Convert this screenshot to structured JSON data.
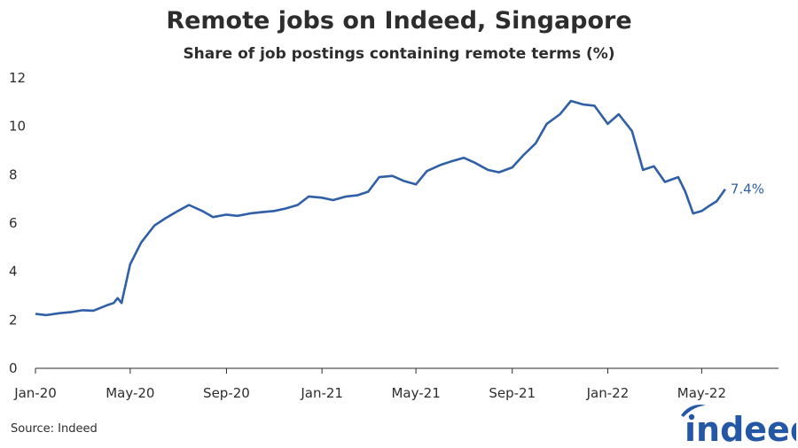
{
  "chart_data": {
    "type": "line",
    "title": "Remote jobs on Indeed, Singapore",
    "subtitle": "Share of job postings containing remote terms (%)",
    "ylim": [
      0,
      12
    ],
    "yticks": [
      "0",
      "2",
      "4",
      "6",
      "8",
      "10",
      "12"
    ],
    "xticks": [
      "Jan-20",
      "May-20",
      "Sep-20",
      "Jan-21",
      "May-21",
      "Sep-21",
      "Jan-22",
      "May-22"
    ],
    "grid": false,
    "line_color": "#2f5fa6",
    "end_label": "7.4%",
    "series": [
      {
        "x": [
          "2020-01-01",
          "2020-01-15",
          "2020-02-01",
          "2020-02-15",
          "2020-03-01",
          "2020-03-15",
          "2020-04-01",
          "2020-04-10",
          "2020-04-15",
          "2020-04-20",
          "2020-05-01",
          "2020-05-15",
          "2020-06-01",
          "2020-06-15",
          "2020-07-01",
          "2020-07-15",
          "2020-08-01",
          "2020-08-15",
          "2020-09-01",
          "2020-09-15",
          "2020-10-01",
          "2020-10-15",
          "2020-11-01",
          "2020-11-15",
          "2020-12-01",
          "2020-12-15",
          "2021-01-01",
          "2021-01-15",
          "2021-02-01",
          "2021-02-15",
          "2021-03-01",
          "2021-03-15",
          "2021-04-01",
          "2021-04-15",
          "2021-05-01",
          "2021-05-15",
          "2021-06-01",
          "2021-06-15",
          "2021-07-01",
          "2021-07-15",
          "2021-08-01",
          "2021-08-15",
          "2021-09-01",
          "2021-09-15",
          "2021-10-01",
          "2021-10-15",
          "2021-11-01",
          "2021-11-15",
          "2021-12-01",
          "2021-12-15",
          "2022-01-01",
          "2022-01-15",
          "2022-02-01",
          "2022-02-15",
          "2022-03-01",
          "2022-03-15",
          "2022-04-01",
          "2022-04-10",
          "2022-04-20",
          "2022-05-01",
          "2022-05-10",
          "2022-05-20",
          "2022-05-31"
        ],
        "values": [
          2.25,
          2.2,
          2.28,
          2.32,
          2.4,
          2.38,
          2.6,
          2.7,
          2.9,
          2.7,
          4.3,
          5.2,
          5.9,
          6.2,
          6.5,
          6.75,
          6.5,
          6.25,
          6.35,
          6.3,
          6.4,
          6.45,
          6.5,
          6.6,
          6.75,
          7.1,
          7.05,
          6.95,
          7.1,
          7.15,
          7.3,
          7.9,
          7.95,
          7.75,
          7.6,
          8.15,
          8.4,
          8.55,
          8.7,
          8.5,
          8.2,
          8.1,
          8.3,
          8.8,
          9.3,
          10.1,
          10.5,
          11.05,
          10.9,
          10.85,
          10.1,
          10.5,
          9.8,
          8.2,
          8.35,
          7.7,
          7.9,
          7.3,
          6.4,
          6.5,
          6.7,
          6.9,
          7.4
        ]
      }
    ]
  },
  "source": "Source: Indeed",
  "logo_text": "indeed"
}
